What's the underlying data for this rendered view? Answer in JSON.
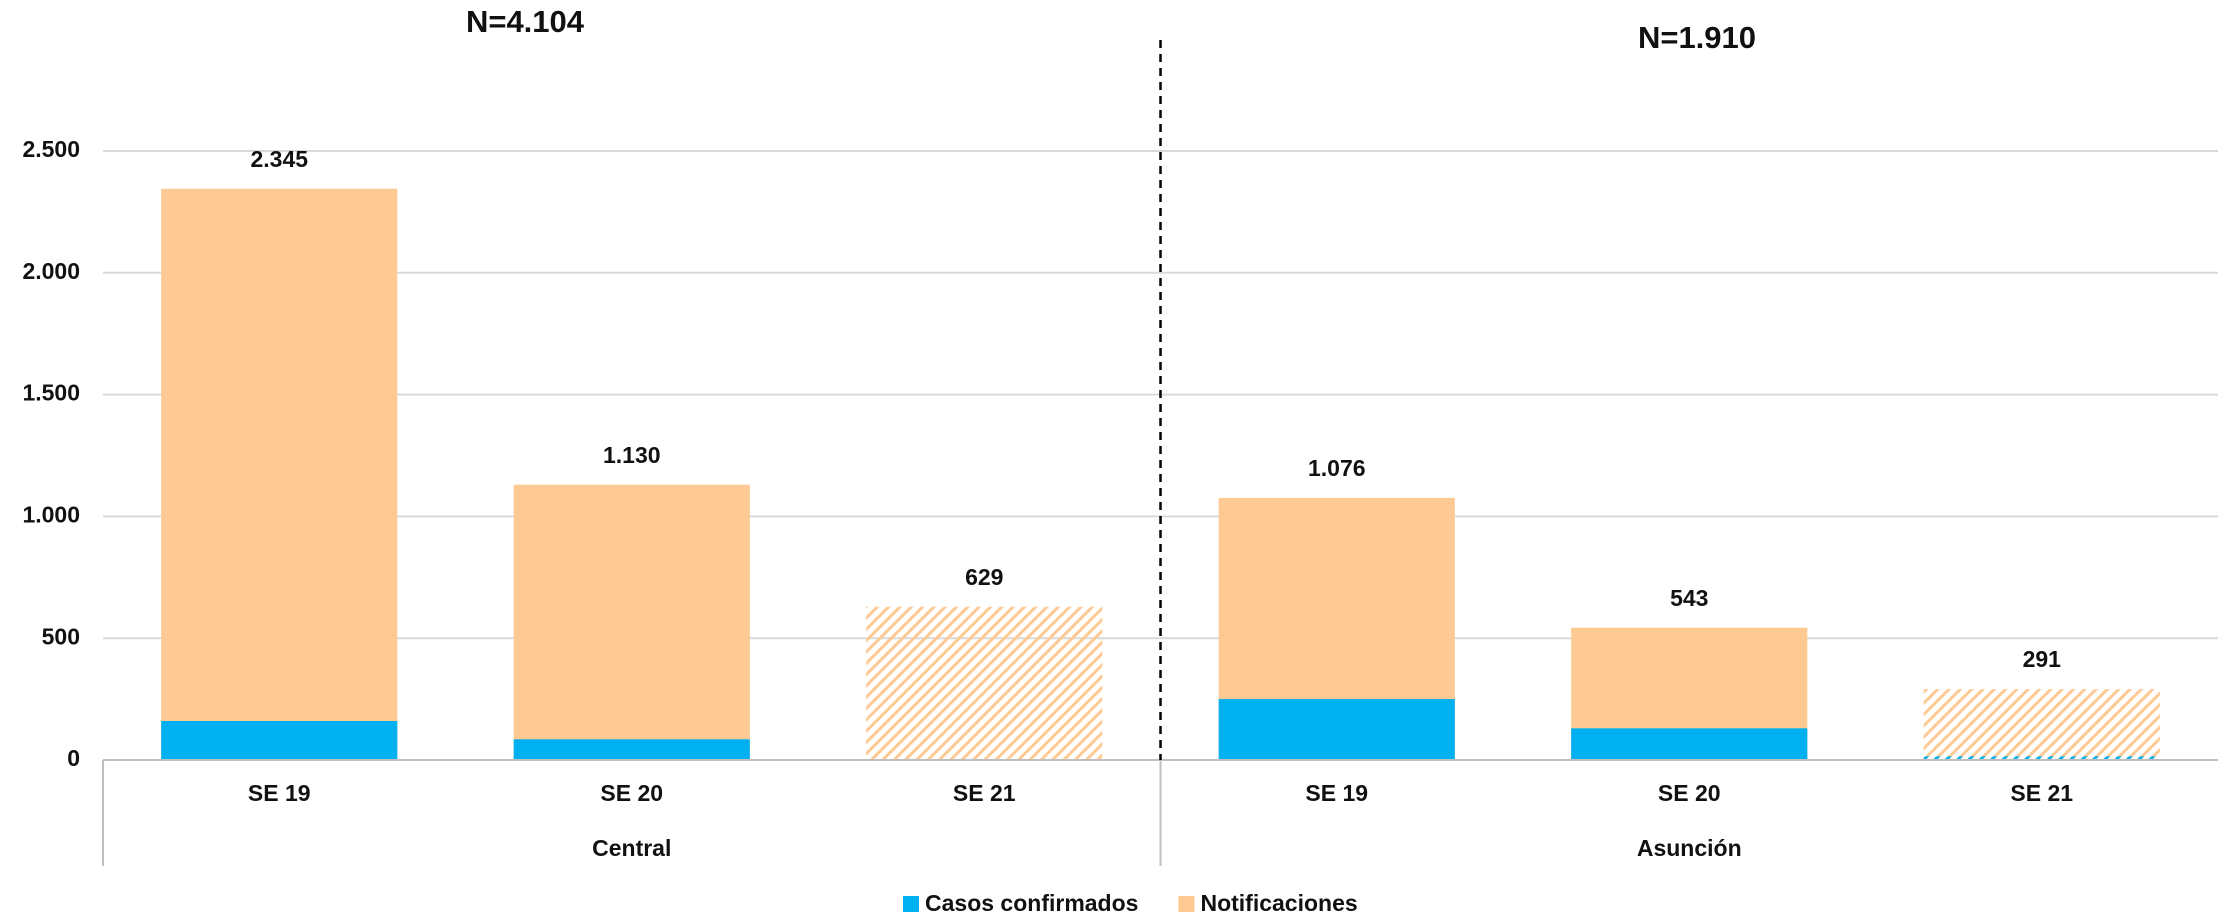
{
  "chart_data": {
    "type": "bar",
    "categories": [
      "SE 19",
      "SE 20",
      "SE 21",
      "SE 19",
      "SE 20",
      "SE 21"
    ],
    "groups": [
      {
        "label": "Central",
        "total": "N=4.104"
      },
      {
        "label": "Asunción",
        "total": "N=1.910"
      }
    ],
    "hatched": [
      false,
      false,
      true,
      false,
      false,
      true
    ],
    "series": [
      {
        "name": "Casos confirmados",
        "color": "#00b0f0",
        "values": [
          160,
          85,
          0,
          250,
          130,
          15
        ]
      },
      {
        "name": "Notificaciones",
        "color": "#ffc993",
        "values": [
          2345,
          1130,
          629,
          1076,
          543,
          291
        ],
        "value_labels": [
          "2.345",
          "1.130",
          "629",
          "1.076",
          "543",
          "291"
        ]
      }
    ],
    "overlap": true,
    "ylim": [
      0,
      2500
    ],
    "yticks": [
      0,
      500,
      {
        "value": 1000,
        "label": "1.000"
      },
      {
        "value": 1500,
        "label": "1.500"
      },
      {
        "value": 2000,
        "label": "2.000"
      },
      {
        "value": 2500,
        "label": "2.500"
      }
    ],
    "grid": true
  }
}
